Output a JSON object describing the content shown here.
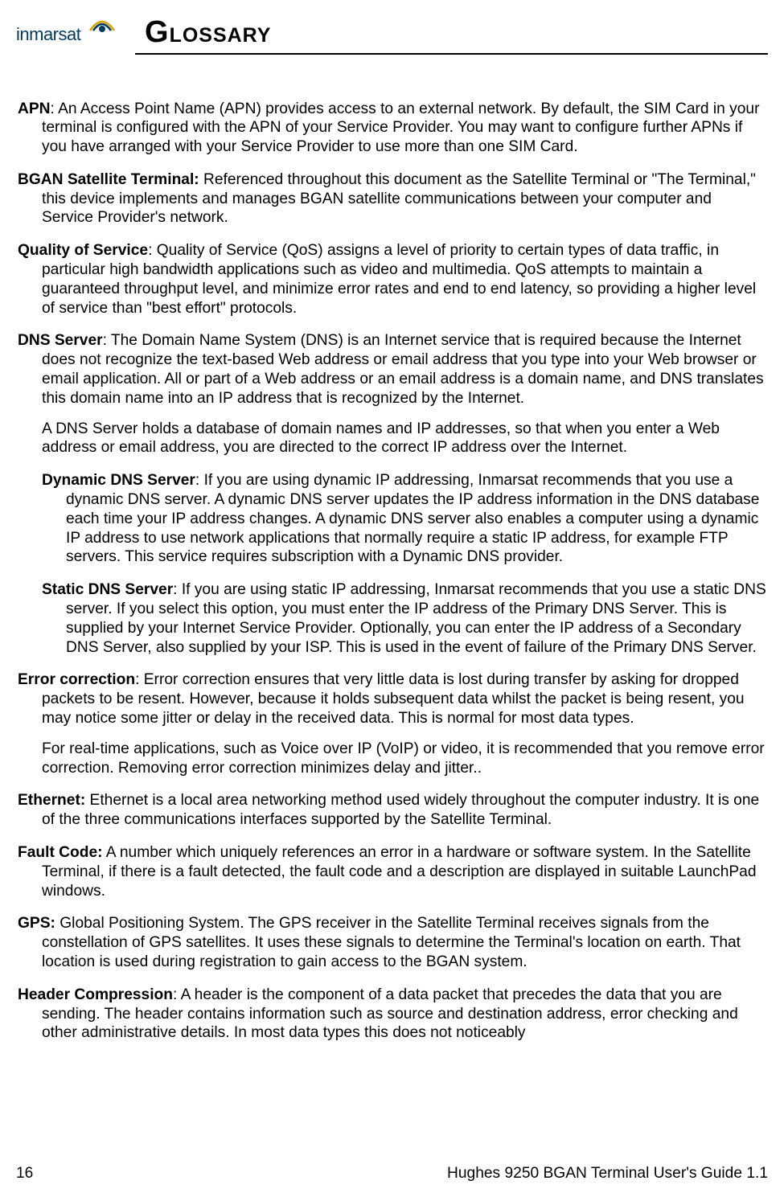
{
  "logo": {
    "name": "inmarsat"
  },
  "chapter": {
    "initial": "G",
    "rest": "LOSSARY"
  },
  "entries": [
    {
      "type": "entry",
      "term": "APN",
      "sep": ": ",
      "text": "An Access Point Name (APN) provides access to an external network. By default, the SIM Card in your terminal is configured with the APN of your Service Provider. You may want to configure further APNs if you have arranged with your Service Provider to use more than one SIM Card."
    },
    {
      "type": "entry",
      "term": "BGAN Satellite Terminal:",
      "sep": " ",
      "text": "Referenced throughout this document as the Satellite Terminal or \"The Terminal,\" this device implements and manages BGAN satellite communications between your computer and Service Provider's network."
    },
    {
      "type": "entry",
      "term": "Quality of Service",
      "sep": ": ",
      "text": "Quality of Service (QoS) assigns a level of priority to certain types of data traffic, in particular high bandwidth applications such as video and multimedia. QoS attempts to maintain a guaranteed throughput level, and minimize error rates and end to end latency, so providing a higher level of service than \"best effort\" protocols."
    },
    {
      "type": "entry",
      "term": "DNS Server",
      "sep": ": ",
      "text": "The Domain Name System (DNS) is an Internet service that is required because the Internet does not recognize the text-based Web address or email address that you type into your Web browser or email application. All or part of a Web address or an email address is a domain name, and DNS translates this domain name into an IP address that is recognized by the Internet.",
      "cont": "A DNS Server holds a database of domain names and IP addresses, so that when you enter a Web address or email address, you are directed to the correct IP address over the Internet."
    },
    {
      "type": "sub",
      "term": "Dynamic DNS Server",
      "sep": ": ",
      "text": "If you are using dynamic IP addressing, Inmarsat recommends that you use a dynamic DNS server. A dynamic DNS server updates the IP address information in the DNS database each time your IP address changes. A dynamic DNS server also enables a computer using a dynamic IP address to use network applications that normally require a static IP address, for example FTP servers. This service requires subscription with a Dynamic DNS provider."
    },
    {
      "type": "sub",
      "term": "Static DNS Server",
      "sep": ": ",
      "text": "If you are using static IP addressing, Inmarsat recommends that you use a static DNS server. If you select this option, you must enter the IP address of the Primary DNS Server. This is supplied by your Internet Service Provider. Optionally, you can enter the IP address of a Secondary DNS Server, also supplied by your ISP. This is used in the event of failure of the Primary DNS Server."
    },
    {
      "type": "entry",
      "term": "Error correction",
      "sep": ": ",
      "text": "Error correction ensures that very little data is lost during transfer by asking for dropped packets to be resent. However, because it holds subsequent data whilst the packet is being resent, you may notice some jitter or delay in the received data. This is normal for most data types.",
      "cont": "For real-time applications, such as Voice over IP (VoIP) or video, it is recommended that you remove error correction. Removing error correction minimizes delay and jitter.."
    },
    {
      "type": "entry",
      "term": "Ethernet:",
      "sep": " ",
      "text": "Ethernet is a local area networking method used widely throughout the computer industry. It is one of the three communications interfaces supported by the Satellite Terminal."
    },
    {
      "type": "entry",
      "term": "Fault Code:",
      "sep": " ",
      "text": "A number which uniquely references an error in a hardware or software system. In the Satellite Terminal, if there is a fault detected, the fault code and a description are displayed in suitable LaunchPad windows."
    },
    {
      "type": "entry",
      "term": "GPS:",
      "sep": " ",
      "text": "Global Positioning System. The GPS receiver in the Satellite Terminal receives signals from the constellation of GPS satellites. It uses these signals to determine the Terminal's location on earth. That location is used during registration to gain access to the BGAN system."
    },
    {
      "type": "entry",
      "term": "Header Compression",
      "sep": ": ",
      "text": "A header is the component of a data packet that precedes the data that you are sending. The header contains information such as source and destination address, error checking and other administrative details. In most data types this does not noticeably"
    }
  ],
  "footer": {
    "page": "16",
    "doc": "Hughes 9250 BGAN Terminal User's Guide 1.1"
  },
  "colors": {
    "logo_text": "#003a5d",
    "logo_yellow": "#d9a000",
    "text": "#000000",
    "bg": "#ffffff"
  }
}
